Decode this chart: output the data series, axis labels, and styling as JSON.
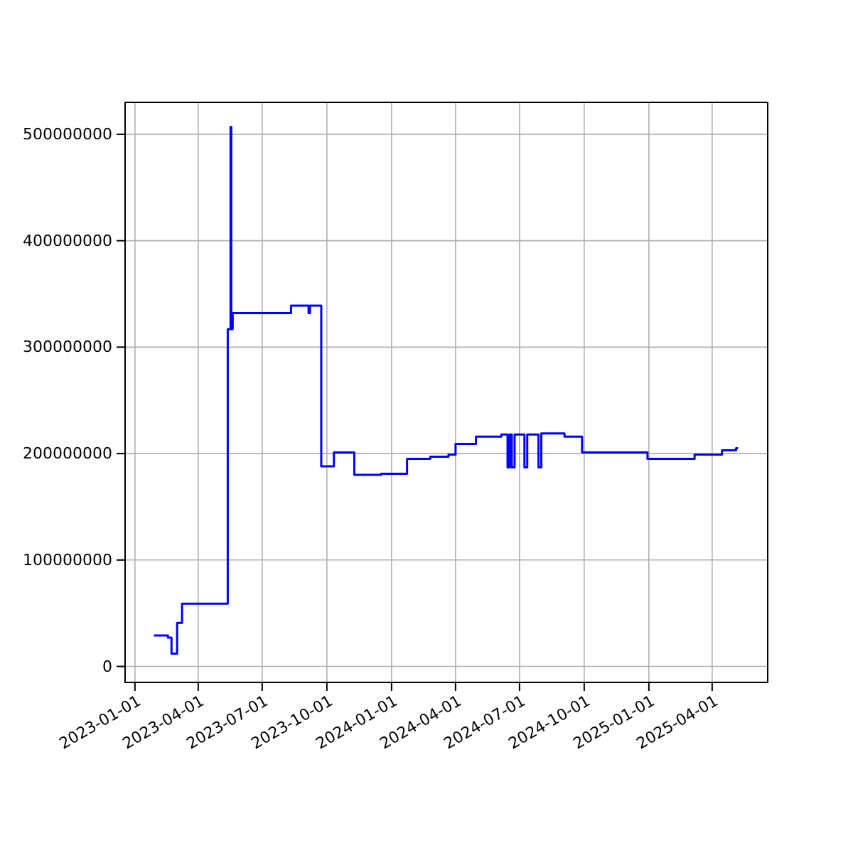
{
  "chart_data": {
    "type": "step",
    "xlim": [
      "2022-12-18",
      "2025-06-19"
    ],
    "xticks": [
      "2023-01-01",
      "2023-04-01",
      "2023-07-01",
      "2023-10-01",
      "2024-01-01",
      "2024-04-01",
      "2024-07-01",
      "2024-10-01",
      "2025-01-01",
      "2025-04-01"
    ],
    "ylim": [
      -15000000,
      530000000
    ],
    "yticks": [
      0,
      100000000,
      200000000,
      300000000,
      400000000,
      500000000
    ],
    "grid": true,
    "series": [
      {
        "color": "#0000ff",
        "x": [
          "2023-01-28",
          "2023-02-17",
          "2023-02-22",
          "2023-03-02",
          "2023-03-09",
          "2023-05-13",
          "2023-05-17",
          "2023-05-18",
          "2023-05-20",
          "2023-08-11",
          "2023-09-05",
          "2023-09-07",
          "2023-09-23",
          "2023-10-11",
          "2023-11-09",
          "2023-12-17",
          "2024-01-23",
          "2024-02-25",
          "2024-03-22",
          "2024-04-01",
          "2024-04-30",
          "2024-06-05",
          "2024-06-14",
          "2024-06-17",
          "2024-06-20",
          "2024-06-24",
          "2024-07-08",
          "2024-07-12",
          "2024-07-28",
          "2024-08-01",
          "2024-09-03",
          "2024-09-28",
          "2024-12-30",
          "2025-03-07",
          "2025-04-15",
          "2025-05-05",
          "2025-05-08"
        ],
        "values": [
          29000000,
          27000000,
          12000000,
          41000000,
          59000000,
          317000000,
          507000000,
          317000000,
          332000000,
          339000000,
          332000000,
          339000000,
          188000000,
          201000000,
          180000000,
          181000000,
          195000000,
          197000000,
          199000000,
          209000000,
          216000000,
          218000000,
          187000000,
          218000000,
          187000000,
          218000000,
          187000000,
          218000000,
          187000000,
          219000000,
          216000000,
          201000000,
          195000000,
          199000000,
          203000000,
          205000000,
          205000000
        ]
      }
    ]
  }
}
